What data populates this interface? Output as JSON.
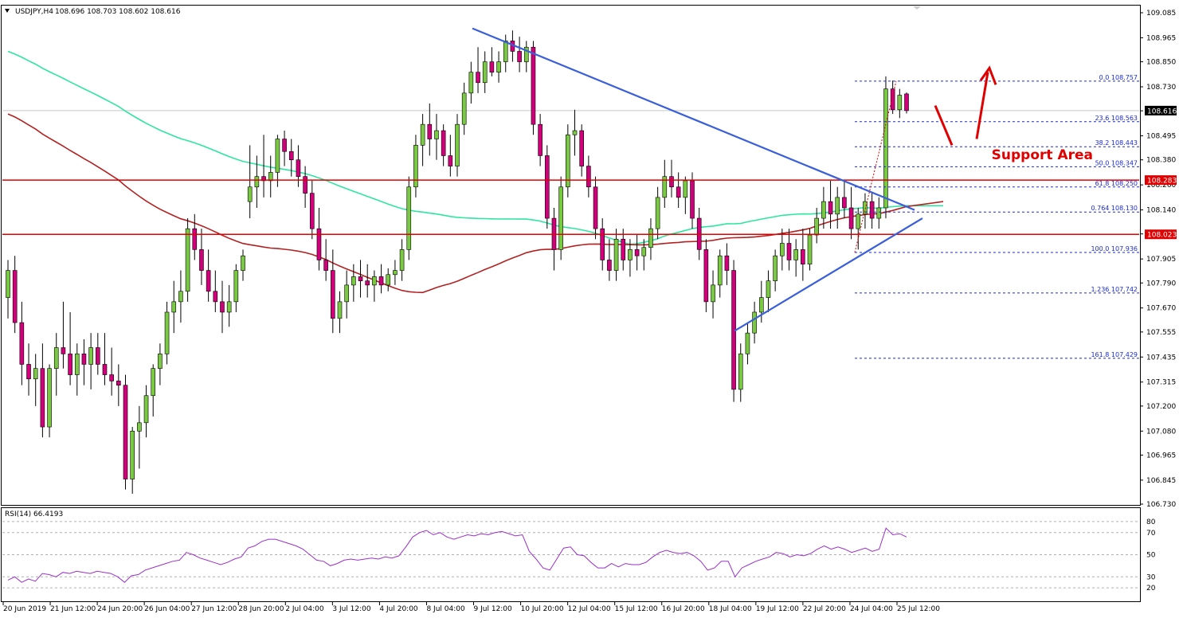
{
  "header": {
    "symbol": "USDJPY,H4",
    "ohlc": "108.696 108.703 108.602 108.616"
  },
  "chart_data": [
    {
      "type": "candlestick",
      "title": "USDJPY,H4",
      "ylim": [
        106.73,
        109.085
      ],
      "price_ticks": [
        "109.085",
        "108.965",
        "108.850",
        "108.730",
        "108.615",
        "108.495",
        "108.380",
        "108.260",
        "108.140",
        "108.025",
        "107.905",
        "107.790",
        "107.670",
        "107.555",
        "107.435",
        "107.315",
        "107.200",
        "107.080",
        "106.965",
        "106.845",
        "106.730"
      ],
      "time_ticks": [
        "20 Jun 2019",
        "21 Jun 12:00",
        "24 Jun 20:00",
        "26 Jun 04:00",
        "27 Jun 12:00",
        "28 Jun 20:00",
        "2 Jul 04:00",
        "3 Jul 12:00",
        "4 Jul 20:00",
        "8 Jul 04:00",
        "9 Jul 12:00",
        "10 Jul 20:00",
        "12 Jul 04:00",
        "15 Jul 12:00",
        "16 Jul 20:00",
        "18 Jul 04:00",
        "19 Jul 12:00",
        "22 Jul 20:00",
        "24 Jul 04:00",
        "25 Jul 12:00"
      ],
      "candles": [
        [
          107.72,
          107.9,
          107.62,
          107.85
        ],
        [
          107.85,
          107.92,
          107.55,
          107.6
        ],
        [
          107.6,
          107.7,
          107.3,
          107.4
        ],
        [
          107.4,
          107.5,
          107.25,
          107.33
        ],
        [
          107.33,
          107.45,
          107.2,
          107.38
        ],
        [
          107.38,
          107.5,
          107.05,
          107.1
        ],
        [
          107.1,
          107.4,
          107.05,
          107.38
        ],
        [
          107.38,
          107.55,
          107.25,
          107.48
        ],
        [
          107.48,
          107.7,
          107.38,
          107.45
        ],
        [
          107.45,
          107.65,
          107.3,
          107.35
        ],
        [
          107.35,
          107.5,
          107.25,
          107.45
        ],
        [
          107.45,
          107.52,
          107.3,
          107.4
        ],
        [
          107.4,
          107.55,
          107.28,
          107.48
        ],
        [
          107.48,
          107.55,
          107.35,
          107.4
        ],
        [
          107.4,
          107.55,
          107.3,
          107.35
        ],
        [
          107.35,
          107.48,
          107.25,
          107.32
        ],
        [
          107.32,
          107.4,
          107.2,
          107.3
        ],
        [
          107.3,
          107.35,
          106.8,
          106.85
        ],
        [
          106.85,
          107.1,
          106.78,
          107.08
        ],
        [
          107.08,
          107.2,
          106.9,
          107.12
        ],
        [
          107.12,
          107.3,
          107.05,
          107.25
        ],
        [
          107.25,
          107.4,
          107.15,
          107.38
        ],
        [
          107.38,
          107.5,
          107.3,
          107.45
        ],
        [
          107.45,
          107.7,
          107.4,
          107.65
        ],
        [
          107.65,
          107.8,
          107.55,
          107.7
        ],
        [
          107.7,
          107.85,
          107.6,
          107.75
        ],
        [
          107.75,
          108.1,
          107.7,
          108.05
        ],
        [
          108.05,
          108.12,
          107.9,
          107.95
        ],
        [
          107.95,
          108.05,
          107.78,
          107.85
        ],
        [
          107.85,
          107.95,
          107.7,
          107.75
        ],
        [
          107.75,
          107.85,
          107.65,
          107.7
        ],
        [
          107.7,
          107.8,
          107.55,
          107.65
        ],
        [
          107.65,
          107.78,
          107.58,
          107.7
        ],
        [
          107.7,
          107.88,
          107.65,
          107.85
        ],
        [
          107.85,
          107.95,
          107.8,
          107.92
        ],
        [
          108.18,
          108.45,
          108.1,
          108.25
        ],
        [
          108.25,
          108.4,
          108.15,
          108.3
        ],
        [
          108.3,
          108.5,
          108.2,
          108.28
        ],
        [
          108.28,
          108.4,
          108.2,
          108.32
        ],
        [
          108.32,
          108.5,
          108.25,
          108.48
        ],
        [
          108.48,
          108.52,
          108.35,
          108.42
        ],
        [
          108.42,
          108.48,
          108.3,
          108.38
        ],
        [
          108.38,
          108.45,
          108.25,
          108.3
        ],
        [
          108.3,
          108.35,
          108.15,
          108.22
        ],
        [
          108.22,
          108.28,
          108.0,
          108.05
        ],
        [
          108.05,
          108.15,
          107.85,
          107.9
        ],
        [
          107.9,
          108.0,
          107.8,
          107.85
        ],
        [
          107.85,
          107.95,
          107.55,
          107.62
        ],
        [
          107.62,
          107.75,
          107.55,
          107.7
        ],
        [
          107.7,
          107.85,
          107.62,
          107.78
        ],
        [
          107.78,
          107.88,
          107.7,
          107.82
        ],
        [
          107.82,
          107.9,
          107.72,
          107.8
        ],
        [
          107.8,
          107.88,
          107.72,
          107.78
        ],
        [
          107.78,
          107.85,
          107.7,
          107.82
        ],
        [
          107.82,
          107.88,
          107.74,
          107.78
        ],
        [
          107.78,
          107.86,
          107.75,
          107.83
        ],
        [
          107.83,
          107.9,
          107.78,
          107.85
        ],
        [
          107.85,
          108.0,
          107.8,
          107.95
        ],
        [
          107.95,
          108.3,
          107.9,
          108.25
        ],
        [
          108.25,
          108.5,
          108.2,
          108.45
        ],
        [
          108.45,
          108.6,
          108.35,
          108.55
        ],
        [
          108.55,
          108.65,
          108.4,
          108.48
        ],
        [
          108.48,
          108.6,
          108.38,
          108.52
        ],
        [
          108.52,
          108.55,
          108.35,
          108.4
        ],
        [
          108.4,
          108.5,
          108.3,
          108.35
        ],
        [
          108.35,
          108.6,
          108.3,
          108.55
        ],
        [
          108.55,
          108.75,
          108.5,
          108.7
        ],
        [
          108.7,
          108.85,
          108.65,
          108.8
        ],
        [
          108.8,
          108.92,
          108.7,
          108.75
        ],
        [
          108.75,
          108.9,
          108.7,
          108.85
        ],
        [
          108.85,
          108.92,
          108.78,
          108.8
        ],
        [
          108.8,
          108.9,
          108.75,
          108.85
        ],
        [
          108.85,
          108.98,
          108.8,
          108.95
        ],
        [
          108.95,
          109.0,
          108.85,
          108.9
        ],
        [
          108.9,
          108.97,
          108.8,
          108.85
        ],
        [
          108.85,
          108.95,
          108.8,
          108.92
        ],
        [
          108.92,
          108.95,
          108.5,
          108.55
        ],
        [
          108.55,
          108.6,
          108.35,
          108.4
        ],
        [
          108.4,
          108.45,
          108.05,
          108.1
        ],
        [
          108.1,
          108.15,
          107.85,
          107.95
        ],
        [
          107.95,
          108.3,
          107.9,
          108.25
        ],
        [
          108.25,
          108.55,
          108.2,
          108.5
        ],
        [
          108.5,
          108.62,
          108.4,
          108.52
        ],
        [
          108.52,
          108.55,
          108.3,
          108.35
        ],
        [
          108.35,
          108.4,
          108.2,
          108.25
        ],
        [
          108.25,
          108.3,
          108.0,
          108.05
        ],
        [
          108.05,
          108.1,
          107.85,
          107.9
        ],
        [
          107.9,
          108.0,
          107.8,
          107.85
        ],
        [
          107.85,
          108.05,
          107.8,
          108.0
        ],
        [
          108.0,
          108.05,
          107.85,
          107.9
        ],
        [
          107.9,
          108.0,
          107.82,
          107.95
        ],
        [
          107.95,
          108.02,
          107.85,
          107.92
        ],
        [
          107.92,
          108.0,
          107.85,
          107.96
        ],
        [
          107.96,
          108.1,
          107.9,
          108.05
        ],
        [
          108.05,
          108.25,
          108.0,
          108.2
        ],
        [
          108.2,
          108.38,
          108.15,
          108.3
        ],
        [
          108.3,
          108.38,
          108.2,
          108.25
        ],
        [
          108.25,
          108.32,
          108.15,
          108.2
        ],
        [
          108.2,
          108.3,
          108.12,
          108.28
        ],
        [
          108.28,
          108.32,
          108.05,
          108.1
        ],
        [
          108.1,
          108.15,
          107.9,
          107.95
        ],
        [
          107.95,
          108.0,
          107.65,
          107.7
        ],
        [
          107.7,
          107.85,
          107.62,
          107.78
        ],
        [
          107.78,
          107.95,
          107.72,
          107.92
        ],
        [
          107.92,
          107.98,
          107.78,
          107.85
        ],
        [
          107.85,
          107.9,
          107.22,
          107.28
        ],
        [
          107.28,
          107.5,
          107.22,
          107.45
        ],
        [
          107.45,
          107.6,
          107.4,
          107.55
        ],
        [
          107.55,
          107.7,
          107.5,
          107.65
        ],
        [
          107.65,
          107.8,
          107.6,
          107.72
        ],
        [
          107.72,
          107.85,
          107.65,
          107.8
        ],
        [
          107.8,
          107.95,
          107.75,
          107.92
        ],
        [
          107.92,
          108.05,
          107.85,
          107.98
        ],
        [
          107.98,
          108.05,
          107.85,
          107.9
        ],
        [
          107.9,
          108.0,
          107.82,
          107.95
        ],
        [
          107.95,
          108.05,
          107.8,
          107.88
        ],
        [
          107.88,
          108.05,
          107.85,
          108.02
        ],
        [
          108.02,
          108.15,
          107.98,
          108.1
        ],
        [
          108.1,
          108.25,
          108.05,
          108.18
        ],
        [
          108.18,
          108.28,
          108.05,
          108.12
        ],
        [
          108.12,
          108.25,
          108.05,
          108.2
        ],
        [
          108.2,
          108.28,
          108.1,
          108.15
        ],
        [
          108.15,
          108.25,
          108.0,
          108.05
        ],
        [
          108.05,
          108.15,
          107.95,
          108.12
        ],
        [
          108.12,
          108.22,
          108.05,
          108.18
        ],
        [
          108.18,
          108.22,
          108.05,
          108.1
        ],
        [
          108.1,
          108.2,
          108.05,
          108.15
        ],
        [
          108.15,
          108.78,
          108.1,
          108.72
        ],
        [
          108.72,
          108.76,
          108.6,
          108.62
        ],
        [
          108.62,
          108.72,
          108.58,
          108.69
        ],
        [
          108.696,
          108.703,
          108.602,
          108.616
        ]
      ],
      "levels": [
        {
          "label": "108.283",
          "value": 108.283,
          "color": "#e00000"
        },
        {
          "label": "108.023",
          "value": 108.023,
          "color": "#e00000"
        }
      ],
      "current_price": {
        "label": "108.616",
        "value": 108.616
      },
      "fibonacci": [
        {
          "label": "0.0 108.757",
          "value": 108.757
        },
        {
          "label": "23.6 108.563",
          "value": 108.563
        },
        {
          "label": "38.2 108.443",
          "value": 108.443
        },
        {
          "label": "50.0 108.347",
          "value": 108.347
        },
        {
          "label": "61.8 108.250",
          "value": 108.25
        },
        {
          "label": "0.764 108.130",
          "value": 108.13
        },
        {
          "label": "100.0 107.936",
          "value": 107.936
        },
        {
          "label": "1.236 107.742",
          "value": 107.742
        },
        {
          "label": "161.8 107.429",
          "value": 107.429
        }
      ],
      "annotation": "Support Area",
      "colors": {
        "bull": "#7ac943",
        "bear": "#d1007a",
        "sma_fast": "#2ee6a0",
        "sma_slow": "#b22222",
        "trendline": "#3a5fd9",
        "fib": "#1a2bd6",
        "annotation": "#e00000",
        "rsi": "#9b30c8"
      }
    },
    {
      "type": "line",
      "title": "RSI(14) 66.4193",
      "ylim": [
        10,
        90
      ],
      "ticks": [
        "80",
        "70",
        "50",
        "30",
        "20"
      ],
      "values": [
        27,
        30,
        25,
        28,
        26,
        33,
        32,
        30,
        34,
        33,
        35,
        34,
        33,
        35,
        34,
        33,
        30,
        25,
        31,
        32,
        36,
        38,
        40,
        42,
        44,
        45,
        52,
        50,
        47,
        45,
        43,
        41,
        43,
        46,
        48,
        56,
        58,
        62,
        64,
        64,
        62,
        60,
        58,
        55,
        50,
        45,
        44,
        40,
        42,
        45,
        46,
        45,
        46,
        47,
        46,
        48,
        47,
        49,
        57,
        66,
        70,
        72,
        68,
        70,
        66,
        64,
        66,
        68,
        67,
        69,
        68,
        70,
        71,
        69,
        67,
        68,
        53,
        46,
        38,
        36,
        46,
        56,
        57,
        50,
        49,
        43,
        38,
        38,
        42,
        39,
        42,
        41,
        41,
        43,
        48,
        52,
        54,
        52,
        51,
        52,
        49,
        44,
        36,
        38,
        44,
        44,
        30,
        38,
        41,
        44,
        46,
        48,
        52,
        51,
        48,
        50,
        49,
        51,
        55,
        58,
        55,
        57,
        55,
        52,
        54,
        56,
        53,
        55,
        74,
        68,
        69,
        66
      ]
    }
  ]
}
